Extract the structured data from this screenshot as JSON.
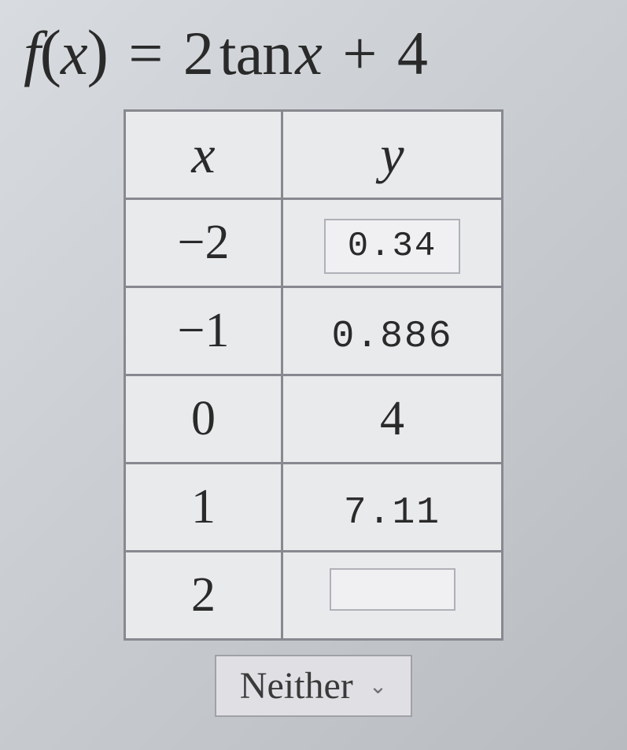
{
  "equation": {
    "fn": "f",
    "lparen": "(",
    "var1": "x",
    "rparen": ")",
    "eq": "=",
    "coef": "2",
    "tan": "tan",
    "var2": "x",
    "plus": "+",
    "const": "4"
  },
  "table": {
    "type": "table",
    "columns": [
      "x",
      "y"
    ],
    "rows": [
      {
        "x": "−2",
        "y": "0.34",
        "y_style": "input"
      },
      {
        "x": "−1",
        "y": "0.886",
        "y_style": "text"
      },
      {
        "x": "0",
        "y": "4",
        "y_style": "big"
      },
      {
        "x": "1",
        "y": "7.11",
        "y_style": "text"
      },
      {
        "x": "2",
        "y": "",
        "y_style": "empty-input"
      }
    ],
    "border_color": "#888890",
    "background_color": "#e8eaec",
    "cell_font_size": 62,
    "header_font_style": "italic"
  },
  "dropdown": {
    "selected": "Neither",
    "chevron": "⌄"
  },
  "colors": {
    "page_bg_start": "#d8dce0",
    "page_bg_end": "#b8bcc0",
    "text": "#2a2a2a",
    "input_border": "#b0b0b8",
    "input_bg": "#f0f0f2"
  }
}
